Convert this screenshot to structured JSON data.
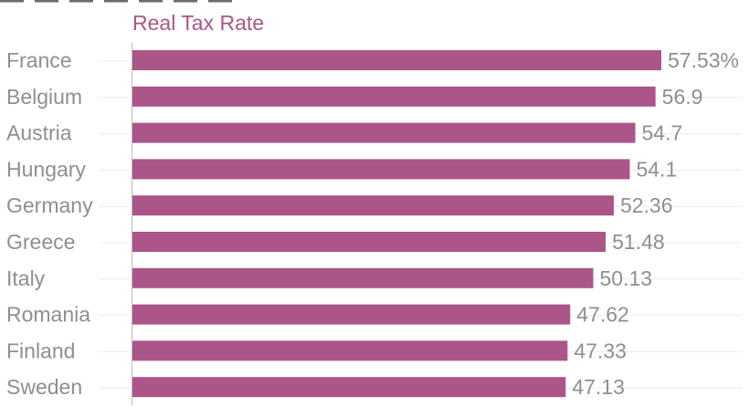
{
  "chart_data": {
    "type": "bar",
    "orientation": "horizontal",
    "series_label": "Real Tax Rate",
    "categories": [
      "France",
      "Belgium",
      "Austria",
      "Hungary",
      "Germany",
      "Greece",
      "Italy",
      "Romania",
      "Finland",
      "Sweden"
    ],
    "values": [
      57.53,
      56.9,
      54.7,
      54.1,
      52.36,
      51.48,
      50.13,
      47.62,
      47.33,
      47.13
    ],
    "value_labels": [
      "57.53%",
      "56.9",
      "54.7",
      "54.1",
      "52.36",
      "51.48",
      "50.13",
      "47.62",
      "47.33",
      "47.13"
    ],
    "xlim": [
      0,
      57.53
    ],
    "grid": true,
    "colors": {
      "bar": "#ab5588",
      "series_label": "#ab5588",
      "text": "#8f8f8f",
      "axis": "#bdbdbd",
      "grid": "#ececec"
    }
  }
}
